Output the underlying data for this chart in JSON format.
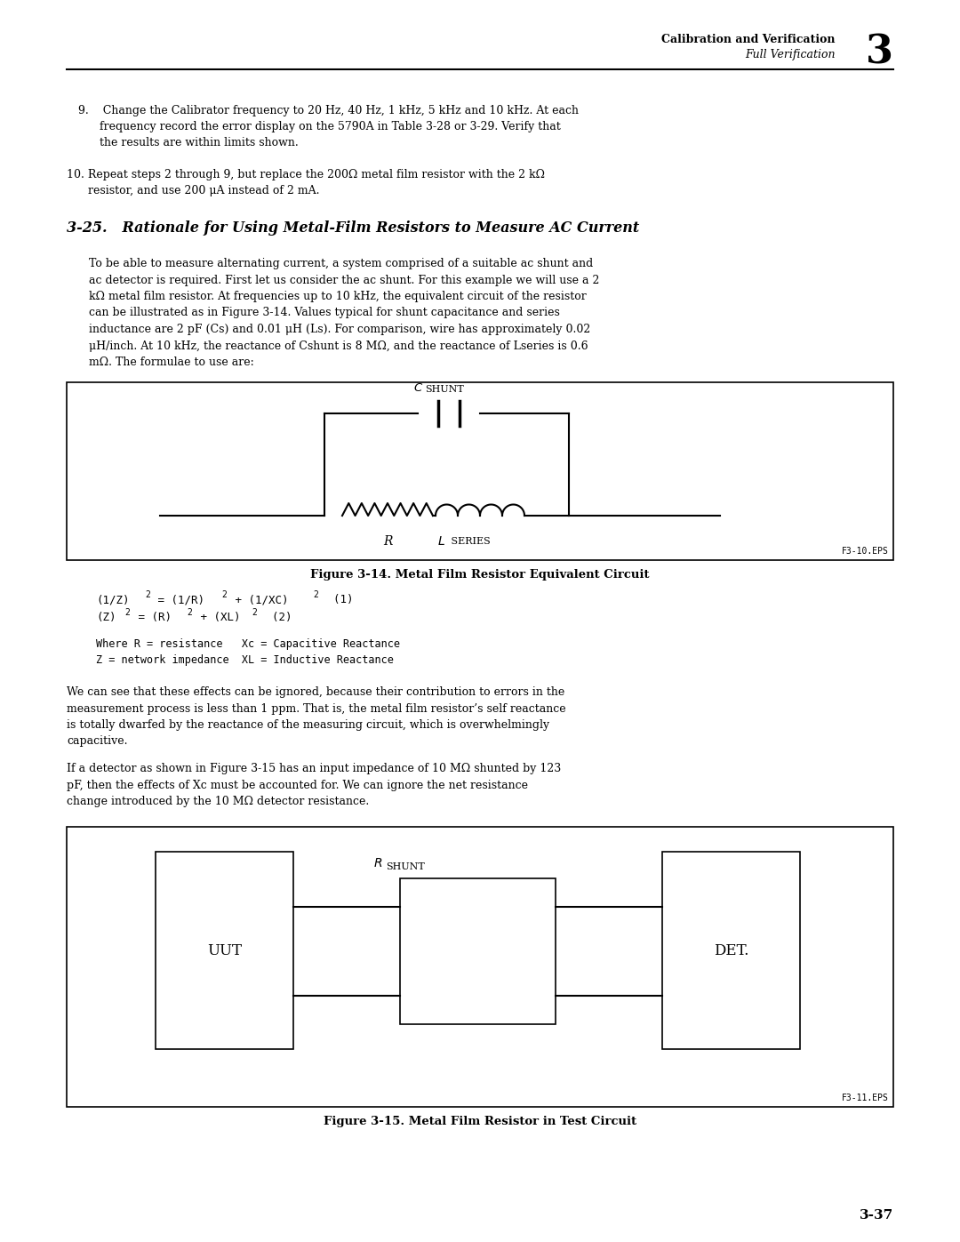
{
  "bg_color": "#ffffff",
  "page_width": 10.8,
  "page_height": 13.97,
  "header_bold": "Calibration and Verification",
  "header_italic": "Full Verification",
  "chapter_num": "3",
  "item9_lines": [
    "9.    Change the Calibrator frequency to 20 Hz, 40 Hz, 1 kHz, 5 kHz and 10 kHz. At each",
    "      frequency record the error display on the 5790A in Table 3-28 or 3-29. Verify that",
    "      the results are within limits shown."
  ],
  "item10_lines": [
    "10. Repeat steps 2 through 9, but replace the 200Ω metal film resistor with the 2 kΩ",
    "      resistor, and use 200 μA instead of 2 mA."
  ],
  "section_heading": "3-25.   Rationale for Using Metal-Film Resistors to Measure AC Current",
  "para1_lines": [
    "To be able to measure alternating current, a system comprised of a suitable ac shunt and",
    "ac detector is required. First let us consider the ac shunt. For this example we will use a 2",
    "kΩ metal film resistor. At frequencies up to 10 kHz, the equivalent circuit of the resistor",
    "can be illustrated as in Figure 3-14. Values typical for shunt capacitance and series",
    "inductance are 2 pF (Cs) and 0.01 μH (Ls). For comparison, wire has approximately 0.02",
    "μH/inch. At 10 kHz, the reactance of Cshunt is 8 MΩ, and the reactance of Lseries is 0.6",
    "mΩ. The formulae to use are:"
  ],
  "fig14_caption": "Figure 3-14. Metal Film Resistor Equivalent Circuit",
  "fig14_tag": "F3-10.EPS",
  "para2_lines": [
    "We can see that these effects can be ignored, because their contribution to errors in the",
    "measurement process is less than 1 ppm. That is, the metal film resistor’s self reactance",
    "is totally dwarfed by the reactance of the measuring circuit, which is overwhelmingly",
    "capacitive."
  ],
  "para3_lines": [
    "If a detector as shown in Figure 3-15 has an input impedance of 10 MΩ shunted by 123",
    "pF, then the effects of Xc must be accounted for. We can ignore the net resistance",
    "change introduced by the 10 MΩ detector resistance."
  ],
  "fig15_caption": "Figure 3-15. Metal Film Resistor in Test Circuit",
  "fig15_tag": "F3-11.EPS",
  "page_num": "3-37"
}
